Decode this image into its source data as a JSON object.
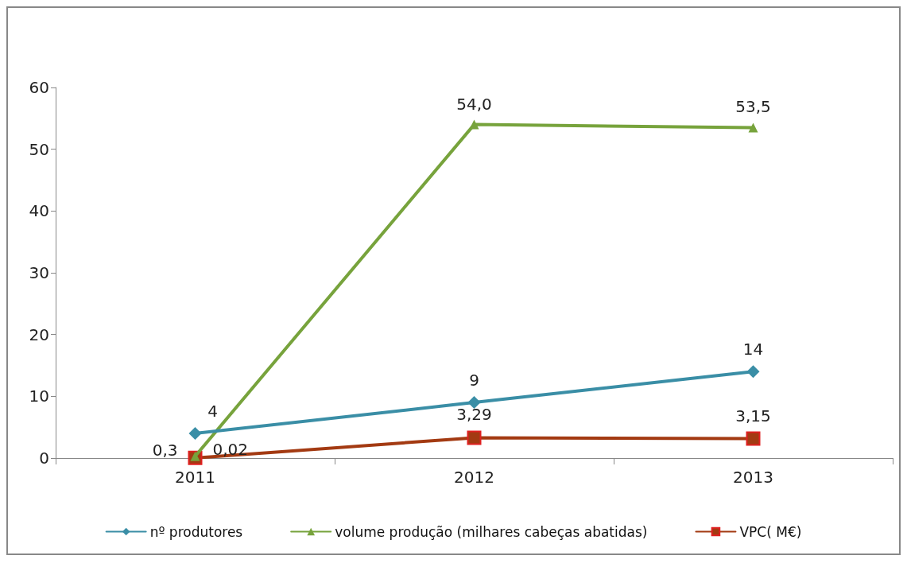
{
  "chart_data": {
    "type": "line",
    "categories": [
      "2011",
      "2012",
      "2013"
    ],
    "series": [
      {
        "name": "nº produtores",
        "color": "#3a8ea6",
        "marker": "diamond",
        "values": [
          4,
          9,
          14
        ],
        "value_labels": [
          "4",
          "9",
          "14"
        ]
      },
      {
        "name": "volume produção (milhares cabeças abatidas)",
        "color": "#77a33c",
        "marker": "triangle",
        "values": [
          0.3,
          54.0,
          53.5
        ],
        "value_labels": [
          "0,3",
          "54,0",
          "53,5"
        ]
      },
      {
        "name": "VPC( M€)",
        "color": "#a33a12",
        "marker": "square",
        "values": [
          0.02,
          3.29,
          3.15
        ],
        "value_labels": [
          "0,02",
          "3,29",
          "3,15"
        ]
      }
    ],
    "ylim": [
      0,
      60
    ],
    "yticks": [
      0,
      10,
      20,
      30,
      40,
      50,
      60
    ],
    "grid": false,
    "legend": "bottom",
    "line_style": "solid"
  }
}
